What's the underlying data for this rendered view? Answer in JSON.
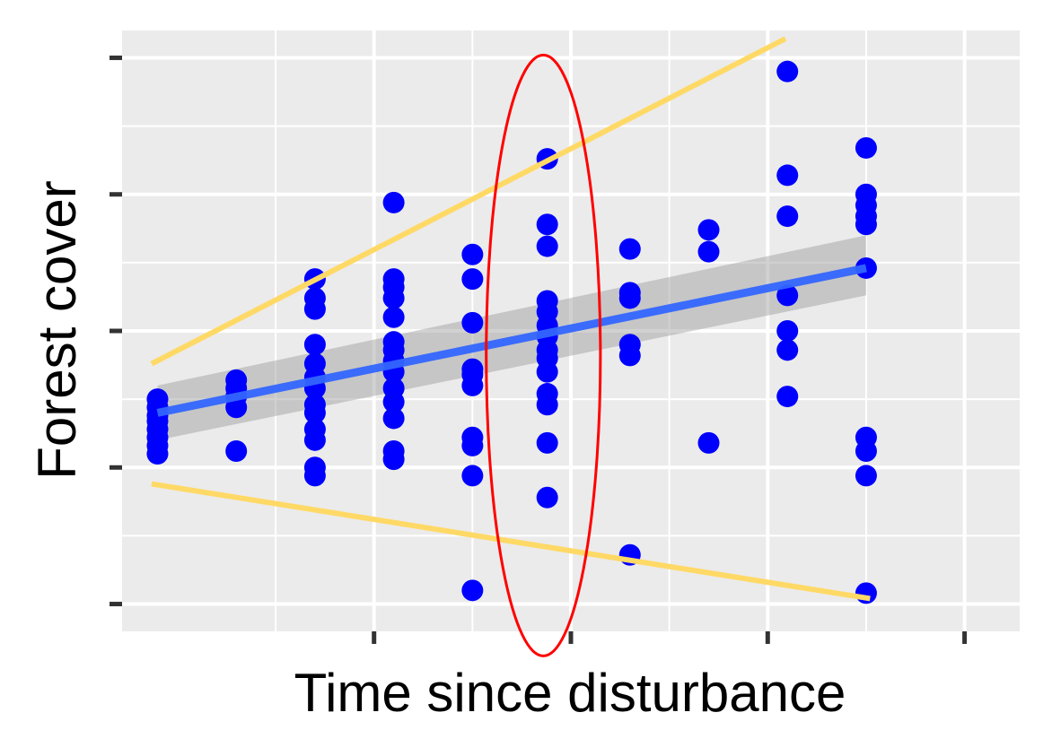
{
  "chart_data": {
    "type": "scatter",
    "xlabel": "Time since disturbance",
    "ylabel": "Forest cover",
    "xlim": [
      -0.78,
      3.78
    ],
    "ylim": [
      -0.1,
      2.1
    ],
    "x_ticks": [
      0.5,
      1.5,
      2.5,
      3.5
    ],
    "y_ticks": [
      0,
      0.5,
      1,
      1.5,
      2
    ],
    "grid": true,
    "legend": "none",
    "points_color": "#0000ff",
    "fit_color": "#3366ff",
    "band_color": "#999999",
    "envelope_color": "#ffd966",
    "highlight_color": "#ff0000",
    "points": [
      [
        -0.6,
        0.75
      ],
      [
        -0.6,
        0.72
      ],
      [
        -0.6,
        0.69
      ],
      [
        -0.6,
        0.67
      ],
      [
        -0.6,
        0.64
      ],
      [
        -0.6,
        0.61
      ],
      [
        -0.6,
        0.58
      ],
      [
        -0.6,
        0.55
      ],
      [
        -0.2,
        0.82
      ],
      [
        -0.2,
        0.79
      ],
      [
        -0.2,
        0.76
      ],
      [
        -0.2,
        0.72
      ],
      [
        -0.2,
        0.56
      ],
      [
        0.2,
        1.19
      ],
      [
        0.2,
        1.12
      ],
      [
        0.2,
        1.08
      ],
      [
        0.2,
        0.95
      ],
      [
        0.2,
        0.88
      ],
      [
        0.2,
        0.83
      ],
      [
        0.2,
        0.79
      ],
      [
        0.2,
        0.73
      ],
      [
        0.2,
        0.7
      ],
      [
        0.2,
        0.64
      ],
      [
        0.2,
        0.6
      ],
      [
        0.2,
        0.5
      ],
      [
        0.2,
        0.47
      ],
      [
        0.6,
        1.47
      ],
      [
        0.6,
        1.19
      ],
      [
        0.6,
        1.16
      ],
      [
        0.6,
        1.12
      ],
      [
        0.6,
        1.05
      ],
      [
        0.6,
        0.96
      ],
      [
        0.6,
        0.93
      ],
      [
        0.6,
        0.89
      ],
      [
        0.6,
        0.85
      ],
      [
        0.6,
        0.79
      ],
      [
        0.6,
        0.74
      ],
      [
        0.6,
        0.68
      ],
      [
        0.6,
        0.56
      ],
      [
        0.6,
        0.53
      ],
      [
        1.0,
        1.28
      ],
      [
        1.0,
        1.19
      ],
      [
        1.0,
        1.03
      ],
      [
        1.0,
        0.86
      ],
      [
        1.0,
        0.84
      ],
      [
        1.0,
        0.8
      ],
      [
        1.0,
        0.61
      ],
      [
        1.0,
        0.58
      ],
      [
        1.0,
        0.47
      ],
      [
        1.0,
        0.05
      ],
      [
        1.38,
        1.63
      ],
      [
        1.38,
        1.39
      ],
      [
        1.38,
        1.31
      ],
      [
        1.38,
        1.11
      ],
      [
        1.38,
        1.07
      ],
      [
        1.38,
        1.02
      ],
      [
        1.38,
        0.98
      ],
      [
        1.38,
        0.93
      ],
      [
        1.38,
        0.9
      ],
      [
        1.38,
        0.85
      ],
      [
        1.38,
        0.77
      ],
      [
        1.38,
        0.73
      ],
      [
        1.38,
        0.59
      ],
      [
        1.38,
        0.39
      ],
      [
        1.8,
        1.3
      ],
      [
        1.8,
        1.14
      ],
      [
        1.8,
        1.12
      ],
      [
        1.8,
        0.95
      ],
      [
        1.8,
        0.91
      ],
      [
        1.8,
        0.18
      ],
      [
        2.2,
        1.37
      ],
      [
        2.2,
        1.29
      ],
      [
        2.2,
        0.59
      ],
      [
        2.6,
        1.95
      ],
      [
        2.6,
        1.57
      ],
      [
        2.6,
        1.42
      ],
      [
        2.6,
        1.13
      ],
      [
        2.6,
        1.0
      ],
      [
        2.6,
        0.93
      ],
      [
        2.6,
        0.76
      ],
      [
        3.0,
        1.67
      ],
      [
        3.0,
        1.5
      ],
      [
        3.0,
        1.46
      ],
      [
        3.0,
        1.42
      ],
      [
        3.0,
        1.39
      ],
      [
        3.0,
        1.23
      ],
      [
        3.0,
        0.61
      ],
      [
        3.0,
        0.56
      ],
      [
        3.0,
        0.47
      ],
      [
        3.0,
        0.04
      ]
    ],
    "fit_line": {
      "x": [
        -0.6,
        3.0
      ],
      "y": [
        0.7,
        1.23
      ]
    },
    "confidence_band": {
      "x": [
        -0.6,
        3.0
      ],
      "lower": [
        0.6,
        1.13
      ],
      "upper": [
        0.8,
        1.35
      ]
    },
    "envelope_upper": {
      "x": [
        -0.63,
        2.59
      ],
      "y": [
        0.88,
        2.07
      ]
    },
    "envelope_lower": {
      "x": [
        -0.63,
        3.02
      ],
      "y": [
        0.44,
        0.02
      ]
    },
    "highlight_ellipse": {
      "cx": 1.36,
      "cy": 0.91,
      "rx": 0.29,
      "ry": 1.1
    }
  }
}
